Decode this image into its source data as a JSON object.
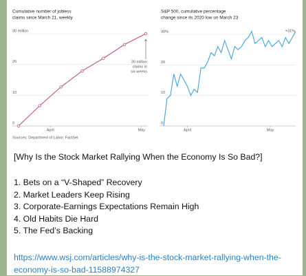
{
  "chart_data": [
    {
      "type": "line",
      "title": [
        "Cumulative number of jobless",
        "claims since March 21, weekly"
      ],
      "x": [
        0,
        1,
        2,
        3,
        4,
        5,
        6
      ],
      "xlim": [
        0,
        6
      ],
      "xticks": [
        {
          "value": 1.5,
          "label": "April"
        },
        {
          "value": 5.8,
          "label": "May"
        }
      ],
      "ylim": [
        0,
        30
      ],
      "yticks": [
        0,
        10,
        20,
        {
          "value": 30,
          "label": "30 million"
        }
      ],
      "series": [
        {
          "color": "#c2508c",
          "values": [
            0,
            6.6,
            12.7,
            17.9,
            22,
            26.5,
            30
          ]
        }
      ],
      "markers": true,
      "grid": true,
      "annotation": [
        "30 million",
        "claims in",
        "six weeks"
      ],
      "source": "Sources: Department of Labor; FactSet"
    },
    {
      "type": "line",
      "title": [
        "S&P 500, cumulative percentage",
        "change since its 2020 low on March 23"
      ],
      "x": [
        0,
        1,
        2,
        3,
        4,
        5,
        6,
        7,
        8,
        9,
        10,
        11,
        12,
        13,
        14,
        15,
        16,
        17,
        18,
        19,
        20,
        21,
        22,
        23,
        24,
        25,
        26,
        27,
        28,
        29,
        30,
        31,
        32,
        33,
        34,
        35,
        36,
        37,
        38,
        39
      ],
      "xlim": [
        0,
        39
      ],
      "xticks": [
        {
          "value": 7,
          "label": "April"
        },
        {
          "value": 31.5,
          "label": "May"
        }
      ],
      "ylim": [
        0,
        30
      ],
      "yticks": [
        0,
        10,
        20,
        {
          "value": 30,
          "label": "30%"
        }
      ],
      "series": [
        {
          "color": "#3ea4db",
          "values": [
            0,
            9,
            10,
            17,
            13,
            17,
            15,
            13,
            10,
            12,
            11,
            19,
            19,
            21,
            24,
            23,
            26,
            24,
            28,
            25,
            22,
            26,
            25,
            26,
            28,
            29,
            31,
            27,
            28,
            29,
            26,
            28,
            26,
            27,
            28,
            26,
            29,
            27,
            29,
            31
          ]
        }
      ],
      "markers": false,
      "grid": true,
      "annotation": [
        "+31%"
      ]
    }
  ],
  "message": {
    "title": "[Why Is the Stock Market Rallying When the Economy Is So Bad?]",
    "items": [
      "1. Bets on a “V-Shaped” Recovery",
      "2. Market Leaders Keep Rising",
      "3. Corporate-Earnings Expectations Remain High",
      "4. Old Habits Die Hard",
      "5. The Fed’s Backing"
    ],
    "link": "https://www.wsj.com/articles/why-is-the-stock-market-rallying-when-the-economy-is-so-bad-11588974327"
  }
}
